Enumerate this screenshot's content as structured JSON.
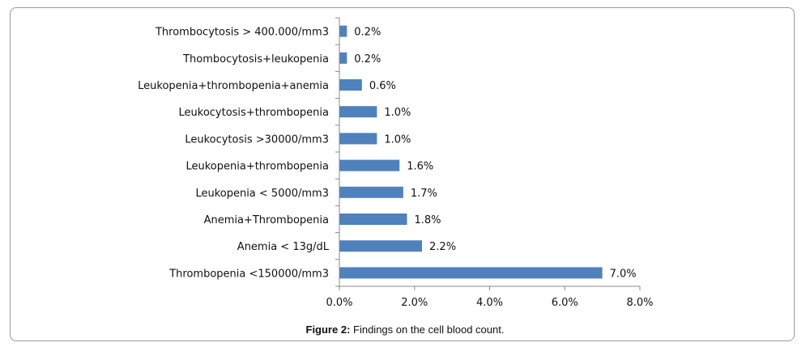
{
  "chart_data": {
    "type": "bar",
    "orientation": "horizontal",
    "categories": [
      "Thrombocytosis > 400.000/mm3",
      "Thombocytosis+leukopenia",
      "Leukopenia+thrombopenia+anemia",
      "Leukocytosis+thrombopenia",
      "Leukocytosis >30000/mm3",
      "Leukopenia+thrombopenia",
      "Leukopenia < 5000/mm3",
      "Anemia+Thrombopenia",
      "Anemia < 13g/dL",
      "Thrombopenia <150000/mm3"
    ],
    "values": [
      0.2,
      0.2,
      0.6,
      1.0,
      1.0,
      1.6,
      1.7,
      1.8,
      2.2,
      7.0
    ],
    "value_labels": [
      "0.2%",
      "0.2%",
      "0.6%",
      "1.0%",
      "1.0%",
      "1.6%",
      "1.7%",
      "1.8%",
      "2.2%",
      "7.0%"
    ],
    "xlim": [
      0,
      8
    ],
    "x_ticks": [
      0,
      2,
      4,
      6,
      8
    ],
    "x_tick_labels": [
      "0.0%",
      "2.0%",
      "4.0%",
      "6.0%",
      "8.0%"
    ],
    "bar_color": "#4F81BD",
    "grid": false,
    "legend": "none"
  },
  "caption": {
    "label": "Figure 2:",
    "text": " Findings on the cell blood count."
  }
}
